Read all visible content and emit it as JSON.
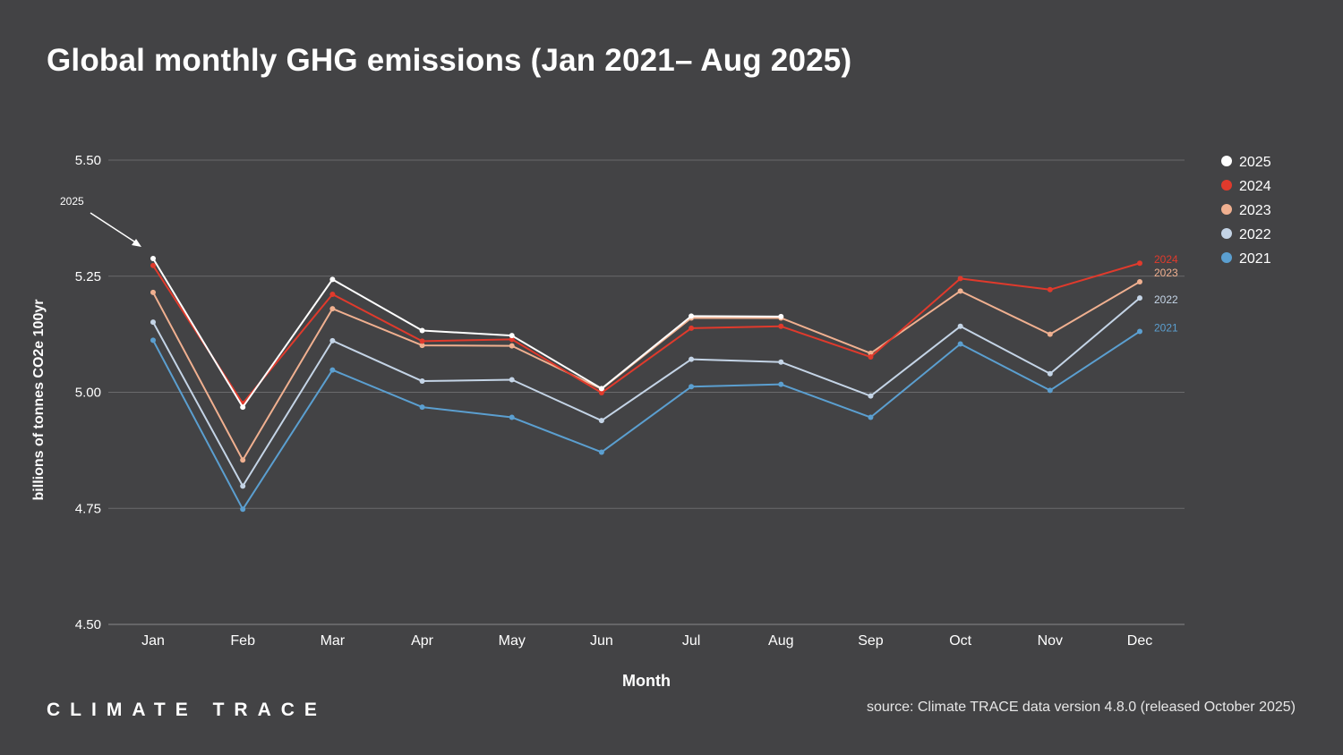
{
  "title": "Global monthly GHG emissions (Jan 2021– Aug 2025)",
  "logo_text": "CLIMATE TRACE",
  "source_text": "source: Climate TRACE data version 4.8.0 (released October 2025)",
  "chart_data": {
    "type": "line",
    "xlabel": "Month",
    "ylabel": "billions of tonnes CO2e 100yr",
    "ylim": [
      4.5,
      5.5
    ],
    "yticks": [
      4.5,
      4.75,
      5.0,
      5.25,
      5.5
    ],
    "ytick_labels": [
      "4.50",
      "4.75",
      "5.00",
      "5.25",
      "5.50"
    ],
    "categories": [
      "Jan",
      "Feb",
      "Mar",
      "Apr",
      "May",
      "Jun",
      "Jul",
      "Aug",
      "Sep",
      "Oct",
      "Nov",
      "Dec"
    ],
    "grid": true,
    "legend_position": "right",
    "annotation": {
      "text": "2025",
      "points_to": "2025 Jan"
    },
    "series": [
      {
        "name": "2021",
        "color": "#5b9fd0",
        "end_label": "2021",
        "values": [
          5.112,
          4.748,
          5.048,
          4.968,
          4.946,
          4.871,
          5.012,
          5.017,
          4.946,
          5.104,
          5.004,
          5.131
        ]
      },
      {
        "name": "2022",
        "color": "#c4d4e6",
        "end_label": "2022",
        "values": [
          5.151,
          4.798,
          5.111,
          5.024,
          5.027,
          4.939,
          5.071,
          5.065,
          4.992,
          5.142,
          5.04,
          5.203
        ]
      },
      {
        "name": "2023",
        "color": "#f0b090",
        "end_label": "2023",
        "values": [
          5.215,
          4.854,
          5.18,
          5.101,
          5.1,
          5.007,
          5.16,
          5.16,
          5.084,
          5.218,
          5.125,
          5.238
        ]
      },
      {
        "name": "2024",
        "color": "#e03a2c",
        "end_label": "2024",
        "values": [
          5.273,
          4.976,
          5.211,
          5.11,
          5.114,
          4.999,
          5.138,
          5.142,
          5.076,
          5.245,
          5.221,
          5.278
        ]
      },
      {
        "name": "2025",
        "color": "#ffffff",
        "end_label": "",
        "values": [
          5.288,
          4.968,
          5.243,
          5.133,
          5.122,
          5.008,
          5.164,
          5.163,
          null,
          null,
          null,
          null
        ]
      }
    ],
    "legend_order": [
      "2025",
      "2024",
      "2023",
      "2022",
      "2021"
    ]
  }
}
